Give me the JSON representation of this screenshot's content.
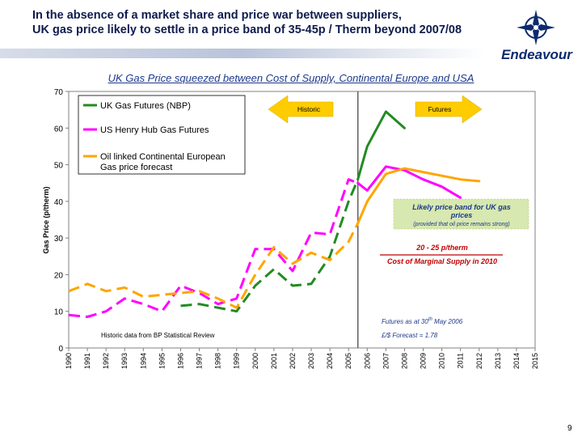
{
  "slide": {
    "title_line1": "In the absence of a market share and price war between suppliers,",
    "title_line2": "UK gas price likely to settle in a price band of 35-45p / Therm beyond 2007/08",
    "logo_text": "Endeavour",
    "page_number": "9"
  },
  "colors": {
    "nbp": "#228B22",
    "henry_hub": "#FF00FF",
    "oil_linked": "#FFA500",
    "arrow": "#FFCC00",
    "band_box": "#D7E8B0",
    "cost_red": "#C00000",
    "label_blue": "#1B3A8C"
  },
  "chart_data": {
    "type": "line",
    "title": "UK Gas Price squeezed between Cost of Supply, Continental Europe and USA",
    "ylabel": "Gas Price (p/therm)",
    "xlabel": "",
    "ylim": [
      0,
      70
    ],
    "yticks": [
      "0",
      "10",
      "20",
      "30",
      "40",
      "50",
      "60",
      "70"
    ],
    "xlim": [
      1990,
      2015
    ],
    "xticks": [
      "1990",
      "1991",
      "1992",
      "1993",
      "1994",
      "1995",
      "1996",
      "1997",
      "1998",
      "1999",
      "2000",
      "2001",
      "2002",
      "2003",
      "2004",
      "2005",
      "2006",
      "2007",
      "2008",
      "2009",
      "2010",
      "2011",
      "2012",
      "2013",
      "2014",
      "2015"
    ],
    "divider_year": 2005.5,
    "series": [
      {
        "name": "UK Gas Futures (NBP)",
        "color_key": "nbp",
        "dashed_segment": {
          "x": [
            1996,
            1997,
            1998,
            1999,
            2000,
            2001,
            2002,
            2003,
            2004,
            2005,
            2005.5
          ],
          "y": [
            11.5,
            12,
            11,
            10,
            17,
            21.5,
            17,
            17.5,
            25,
            40,
            46
          ]
        },
        "solid_segment": {
          "x": [
            2005.5,
            2006,
            2007,
            2008
          ],
          "y": [
            46,
            55,
            64.5,
            60
          ]
        }
      },
      {
        "name": "US Henry Hub Gas Futures",
        "color_key": "henry_hub",
        "dashed_segment": {
          "x": [
            1990,
            1991,
            1992,
            1993,
            1994,
            1995,
            1996,
            1997,
            1998,
            1999,
            2000,
            2001,
            2002,
            2003,
            2004,
            2005,
            2005.5
          ],
          "y": [
            9,
            8.5,
            10,
            13.5,
            12,
            10,
            17,
            15,
            12,
            13.5,
            27,
            27,
            21,
            31.5,
            31,
            46,
            45
          ]
        },
        "solid_segment": {
          "x": [
            2005.5,
            2006,
            2007,
            2008,
            2009,
            2010,
            2011
          ],
          "y": [
            45,
            43,
            49.5,
            48.5,
            46,
            44,
            41
          ]
        }
      },
      {
        "name": "Oil linked Continental European Gas price forecast",
        "legend_lines": [
          "Oil linked Continental European",
          "Gas price forecast"
        ],
        "color_key": "oil_linked",
        "dashed_segment": {
          "x": [
            1990,
            1991,
            1992,
            1993,
            1994,
            1995,
            1996,
            1997,
            1998,
            1999,
            2000,
            2001,
            2002,
            2003,
            2004,
            2005,
            2005.5
          ],
          "y": [
            15.5,
            17.5,
            15.5,
            16.5,
            14,
            14.5,
            15,
            15.5,
            13.5,
            11,
            20,
            27.5,
            23,
            26,
            24,
            29,
            34
          ]
        },
        "solid_segment": {
          "x": [
            2005.5,
            2006,
            2007,
            2008,
            2009,
            2010,
            2011,
            2012
          ],
          "y": [
            34,
            40,
            47.5,
            49,
            48,
            47,
            46,
            45.5
          ]
        }
      }
    ],
    "annotations": {
      "historic_arrow": "Historic",
      "futures_arrow": "Futures",
      "band_box_line1": "Likely price band for UK gas",
      "band_box_line2": "prices",
      "band_box_line3": "(provided that oil price remains strong)",
      "cost_range": "20 - 25 p/therm",
      "cost_label": "Cost of Marginal Supply in 2010",
      "futures_note_main": "Futures as at 30",
      "futures_note_sup": "th",
      "futures_note_end": " May 2006",
      "fx_note": "£/$ Forecast = 1.78",
      "source_note": "Historic data from BP Statistical Review"
    }
  }
}
